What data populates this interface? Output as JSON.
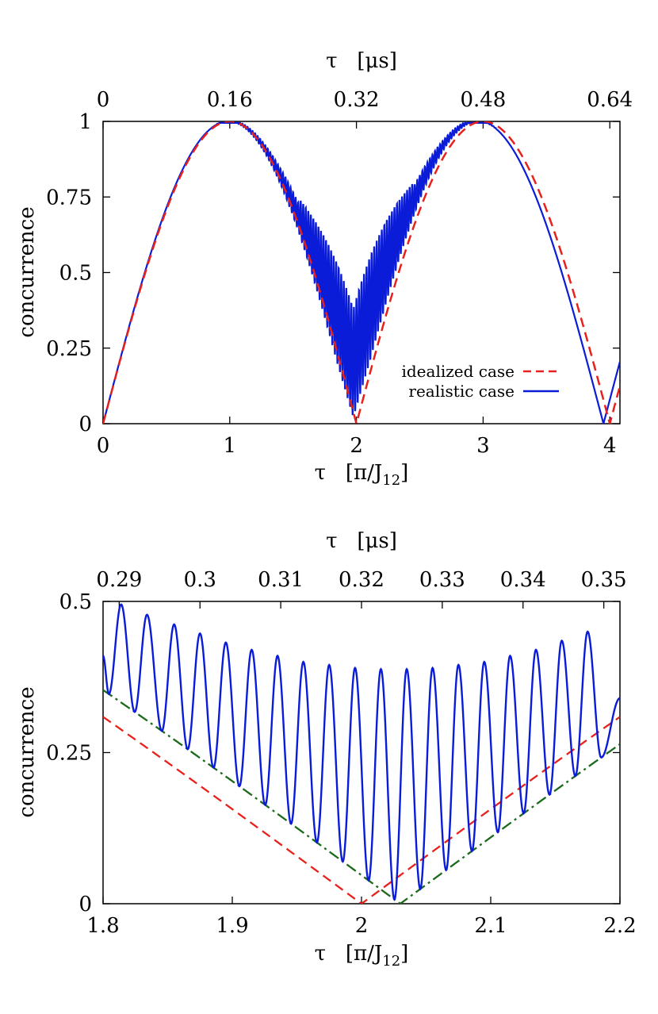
{
  "chart_data": [
    {
      "type": "line",
      "xlabel": "τ   [π/J",
      "xlabel_sub": "12",
      "xlabel_end": "]",
      "x2label": "τ   [μs]",
      "ylabel": "concurrence",
      "xlim": [
        0,
        4.08
      ],
      "ylim": [
        0,
        1
      ],
      "x_ticks": [
        0,
        1,
        2,
        3,
        4
      ],
      "x_tick_labels": [
        "0",
        "1",
        "2",
        "3",
        "4"
      ],
      "x2_tick_positions": [
        0,
        1,
        2,
        3,
        4
      ],
      "x2_tick_labels": [
        "0",
        "0.16",
        "0.32",
        "0.48",
        "0.64"
      ],
      "y_ticks": [
        0,
        0.25,
        0.5,
        0.75,
        1
      ],
      "y_tick_labels": [
        "0",
        "0.25",
        "0.5",
        "0.75",
        "1"
      ],
      "legend_position": "bottom-right",
      "series": [
        {
          "name": "idealized case",
          "style": "dashed",
          "color": "#e8211c",
          "formula": "|sin(pi*x/2)|"
        },
        {
          "name": "realistic case",
          "style": "solid",
          "color": "#0a1cd8",
          "formula": "|sin(pi*x/1.975)| with fast oscillation of growing amplitude near x=2"
        }
      ]
    },
    {
      "type": "line",
      "xlabel": "τ   [π/J",
      "xlabel_sub": "12",
      "xlabel_end": "]",
      "x2label": "τ   [μs]",
      "ylabel": "concurrence",
      "xlim": [
        1.8,
        2.2
      ],
      "ylim": [
        0,
        0.5
      ],
      "x_ticks": [
        1.8,
        1.9,
        2.0,
        2.1,
        2.2
      ],
      "x_tick_labels": [
        "1.8",
        "1.9",
        "2",
        "2.1",
        "2.2"
      ],
      "x2_tick_positions": [
        1.8125,
        1.875,
        1.9375,
        2.0,
        2.0625,
        2.125,
        2.1875
      ],
      "x2_tick_labels": [
        "0.29",
        "0.3",
        "0.31",
        "0.32",
        "0.33",
        "0.34",
        "0.35"
      ],
      "y_ticks": [
        0,
        0.25,
        0.5
      ],
      "y_tick_labels": [
        "0",
        "0.25",
        "0.5"
      ],
      "series": [
        {
          "style": "dashed",
          "color": "#e8211c",
          "formula": "|sin(pi*x/2)|"
        },
        {
          "style": "dash-dot",
          "color": "#1b6a1b",
          "formula": "|sin(pi*(x-0.03)/2)|"
        },
        {
          "style": "solid",
          "color": "#0a1cd8",
          "peaks_x": [
            1.814,
            1.834,
            1.855,
            1.875,
            1.895,
            1.915,
            1.935,
            1.955,
            1.975,
            1.995,
            2.015,
            2.035,
            2.055,
            2.075,
            2.095,
            2.115,
            2.135,
            2.155,
            2.175
          ],
          "peaks_y": [
            0.495,
            0.478,
            0.462,
            0.447,
            0.432,
            0.42,
            0.41,
            0.4,
            0.395,
            0.39,
            0.388,
            0.388,
            0.39,
            0.395,
            0.4,
            0.41,
            0.42,
            0.435,
            0.45
          ]
        }
      ]
    }
  ]
}
